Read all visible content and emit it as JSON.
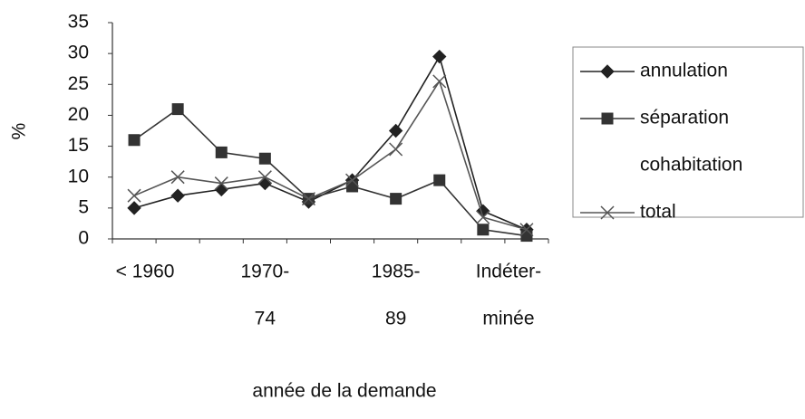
{
  "chart_data": {
    "type": "line",
    "ylabel": "%",
    "xlabel": "année de la demande",
    "categories": [
      [
        "< 1960"
      ],
      null,
      null,
      [
        "1970-",
        "74"
      ],
      null,
      null,
      [
        "1985-",
        "89"
      ],
      null,
      null,
      [
        "Indéter-",
        "minée"
      ]
    ],
    "series": [
      {
        "name": "annulation",
        "color": "#222222",
        "marker": "diamond",
        "values": [
          5,
          7,
          8,
          9,
          6,
          9.5,
          17.5,
          29.5,
          4.5,
          1.5
        ]
      },
      {
        "name": "séparation",
        "color": "#333333",
        "marker": "square",
        "values": [
          16,
          21,
          14,
          13,
          6.5,
          8.5,
          6.5,
          9.5,
          1.5,
          0.5
        ]
      },
      {
        "name": "cohabitation",
        "color": "#ffffff",
        "marker": "none",
        "values": [
          null,
          null,
          null,
          null,
          null,
          null,
          null,
          null,
          null,
          null
        ]
      },
      {
        "name": "total",
        "color": "#555555",
        "marker": "cross",
        "values": [
          7,
          10,
          9,
          10,
          6.5,
          9.5,
          14.5,
          25.5,
          3.5,
          1.5
        ]
      }
    ],
    "ylim": [
      0,
      35
    ],
    "yticks": [
      0,
      5,
      10,
      15,
      20,
      25,
      30,
      35
    ],
    "grid": false,
    "legend": "right"
  }
}
